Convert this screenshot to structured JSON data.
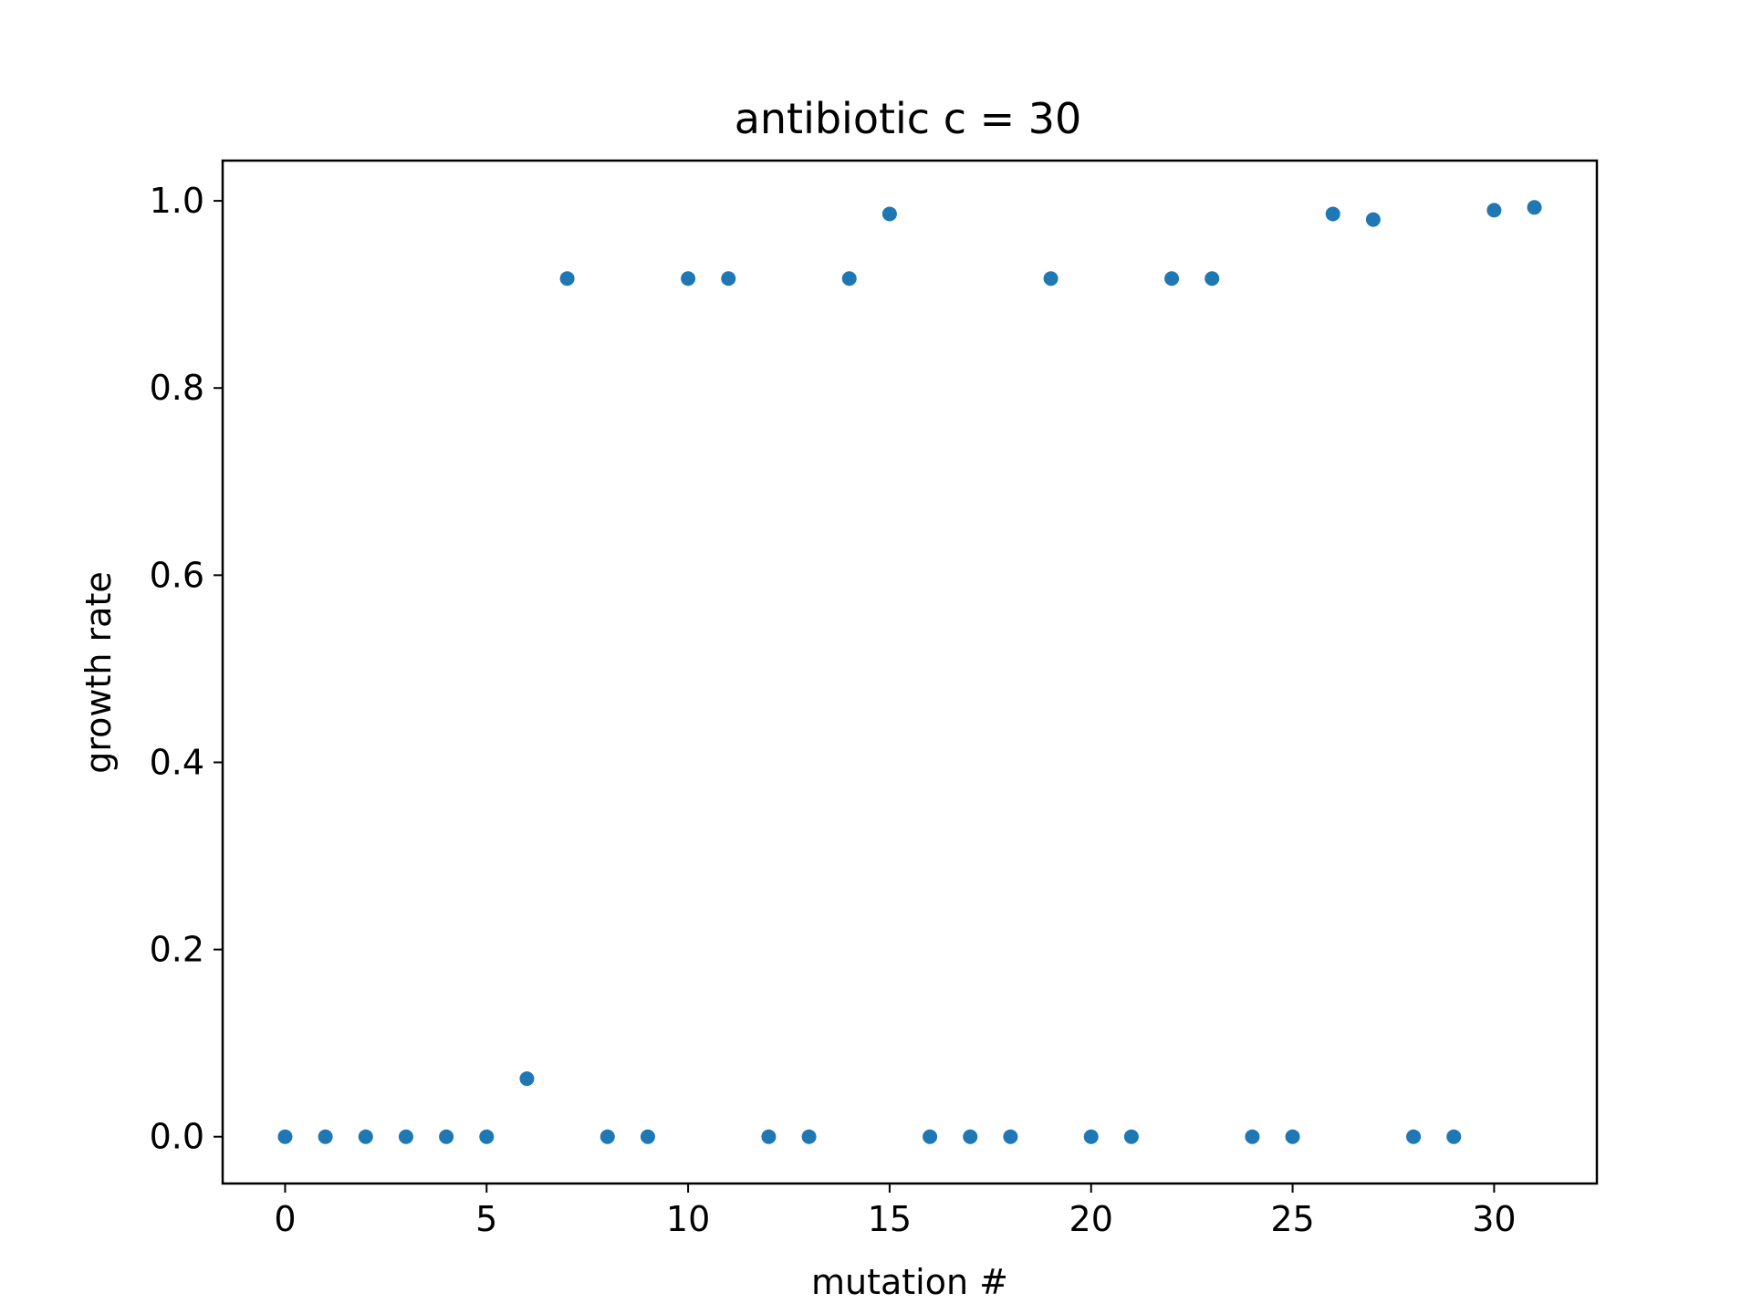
{
  "chart_data": {
    "type": "scatter",
    "title": "antibiotic c = 30",
    "xlabel": "mutation #",
    "ylabel": "growth rate",
    "xlim": [
      -1.55,
      32.55
    ],
    "ylim": [
      -0.05,
      1.043
    ],
    "xticks": [
      0,
      5,
      10,
      15,
      20,
      25,
      30
    ],
    "xtick_labels": [
      "0",
      "5",
      "10",
      "15",
      "20",
      "25",
      "30"
    ],
    "yticks": [
      0.0,
      0.2,
      0.4,
      0.6,
      0.8,
      1.0
    ],
    "ytick_labels": [
      "0.0",
      "0.2",
      "0.4",
      "0.6",
      "0.8",
      "1.0"
    ],
    "grid": false,
    "point_color": "#1f77b4",
    "x": [
      0,
      1,
      2,
      3,
      4,
      5,
      6,
      7,
      8,
      9,
      10,
      11,
      12,
      13,
      14,
      15,
      16,
      17,
      18,
      19,
      20,
      21,
      22,
      23,
      24,
      25,
      26,
      27,
      28,
      29,
      30,
      31
    ],
    "y": [
      0.0,
      0.0,
      0.0,
      0.0,
      0.0,
      0.0,
      0.062,
      0.917,
      0.0,
      0.0,
      0.917,
      0.917,
      0.0,
      0.0,
      0.917,
      0.986,
      0.0,
      0.0,
      0.0,
      0.917,
      0.0,
      0.0,
      0.917,
      0.917,
      0.0,
      0.0,
      0.986,
      0.98,
      0.0,
      0.0,
      0.99,
      0.993
    ]
  }
}
